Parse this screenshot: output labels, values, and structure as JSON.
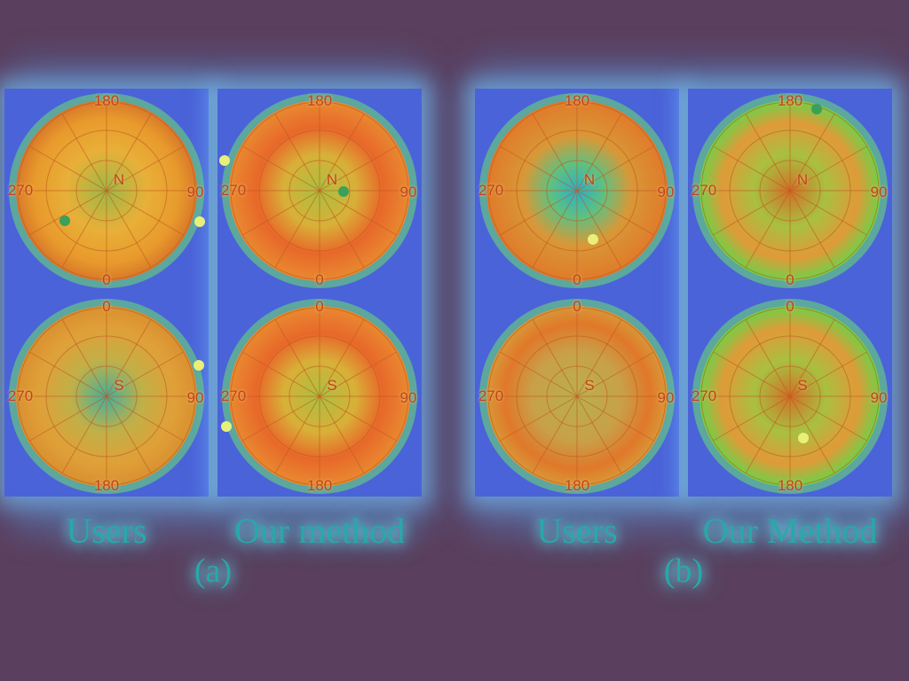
{
  "figure": {
    "group_a": {
      "label": "(a)",
      "users_caption": "Users",
      "method_caption": "Our method"
    },
    "group_b": {
      "label": "(b)",
      "users_caption": "Users",
      "method_caption": "Our Method"
    }
  },
  "polar_labels": {
    "north": {
      "top": "180",
      "bottom": "0",
      "left": "270",
      "right": "90",
      "center": "N"
    },
    "south": {
      "top": "0",
      "bottom": "180",
      "left": "270",
      "right": "90",
      "center": "S"
    }
  },
  "colors": {
    "background": "#5a3f5e",
    "panel": "#4a63d8",
    "hot": "#e8501c",
    "warm": "#e8a030",
    "cool": "#2ab0c8",
    "caption": "#27a9a8"
  }
}
